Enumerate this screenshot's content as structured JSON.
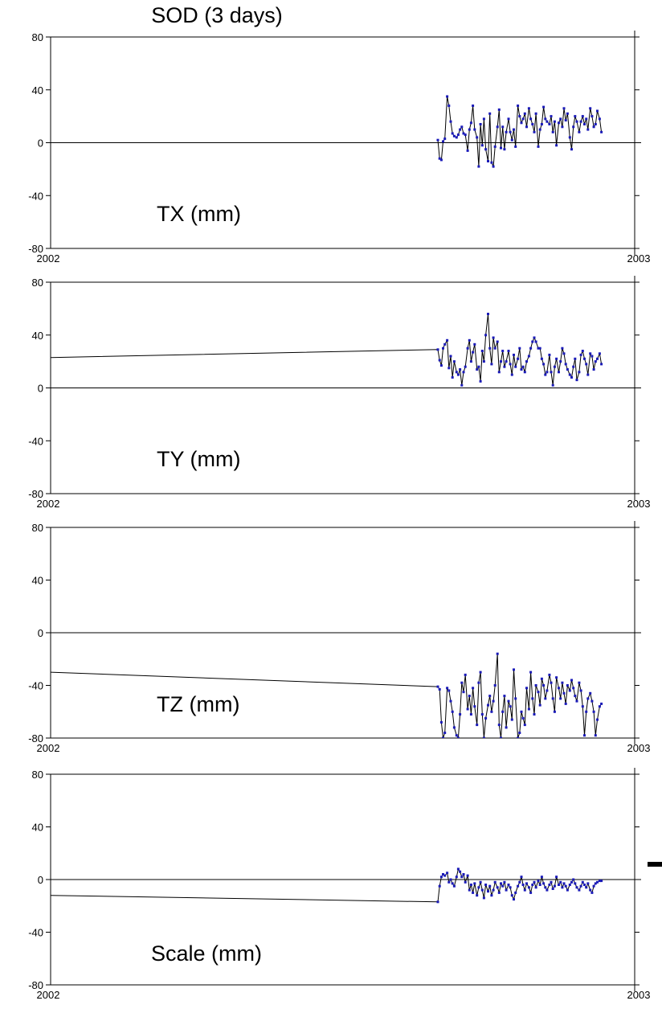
{
  "figure": {
    "title": "SOD (3 days)"
  },
  "colors": {
    "frame": "#000000",
    "series_line": "#000000",
    "series_points": "#1a1ab8",
    "background": "#ffffff"
  },
  "chart_data": [
    {
      "type": "line",
      "label": "TX (mm)",
      "xlim": [
        2002,
        2003
      ],
      "ylim": [
        -80,
        80
      ],
      "yticks": [
        -80,
        -40,
        0,
        40,
        80
      ],
      "xtick_labels": [
        "2002",
        "2003"
      ],
      "zero_line": true,
      "x": [
        2002.663,
        2002.666,
        2002.669,
        2002.672,
        2002.675,
        2002.679,
        2002.682,
        2002.685,
        2002.688,
        2002.691,
        2002.695,
        2002.698,
        2002.701,
        2002.704,
        2002.707,
        2002.71,
        2002.714,
        2002.717,
        2002.72,
        2002.723,
        2002.726,
        2002.73,
        2002.733,
        2002.736,
        2002.739,
        2002.742,
        2002.745,
        2002.749,
        2002.752,
        2002.755,
        2002.758,
        2002.761,
        2002.765,
        2002.768,
        2002.771,
        2002.774,
        2002.777,
        2002.78,
        2002.784,
        2002.787,
        2002.79,
        2002.793,
        2002.796,
        2002.8,
        2002.803,
        2002.806,
        2002.809,
        2002.812,
        2002.815,
        2002.819,
        2002.822,
        2002.825,
        2002.828,
        2002.831,
        2002.835,
        2002.838,
        2002.841,
        2002.844,
        2002.847,
        2002.85,
        2002.854,
        2002.857,
        2002.86,
        2002.863,
        2002.866,
        2002.87,
        2002.873,
        2002.876,
        2002.879,
        2002.882,
        2002.885,
        2002.889,
        2002.892,
        2002.895,
        2002.898,
        2002.901,
        2002.905,
        2002.908,
        2002.911,
        2002.914,
        2002.917,
        2002.92,
        2002.924,
        2002.927,
        2002.93,
        2002.933,
        2002.936,
        2002.94,
        2002.943
      ],
      "y": [
        2,
        -12,
        -13,
        1,
        3,
        35,
        28,
        16,
        7,
        5,
        4,
        6,
        10,
        12,
        7,
        6,
        -6,
        10,
        15,
        28,
        10,
        4,
        -18,
        14,
        -2,
        18,
        -5,
        -14,
        22,
        -15,
        -18,
        -3,
        12,
        25,
        -4,
        12,
        -5,
        8,
        18,
        8,
        2,
        10,
        -3,
        28,
        20,
        15,
        18,
        22,
        12,
        26,
        18,
        14,
        8,
        22,
        -3,
        10,
        14,
        27,
        18,
        16,
        14,
        20,
        8,
        16,
        -2,
        15,
        18,
        12,
        26,
        17,
        22,
        4,
        -5,
        12,
        20,
        16,
        8,
        16,
        20,
        14,
        18,
        10,
        26,
        20,
        12,
        14,
        24,
        18,
        8
      ]
    },
    {
      "type": "line",
      "label": "TY (mm)",
      "xlim": [
        2002,
        2003
      ],
      "ylim": [
        -80,
        80
      ],
      "yticks": [
        -80,
        -40,
        0,
        40,
        80
      ],
      "xtick_labels": [
        "2002",
        "2003"
      ],
      "zero_line": true,
      "x": [
        2002.0,
        2002.663,
        2002.666,
        2002.669,
        2002.672,
        2002.675,
        2002.679,
        2002.682,
        2002.685,
        2002.688,
        2002.691,
        2002.695,
        2002.698,
        2002.701,
        2002.704,
        2002.707,
        2002.71,
        2002.714,
        2002.717,
        2002.72,
        2002.723,
        2002.726,
        2002.73,
        2002.733,
        2002.736,
        2002.739,
        2002.742,
        2002.745,
        2002.749,
        2002.752,
        2002.755,
        2002.758,
        2002.761,
        2002.765,
        2002.768,
        2002.771,
        2002.774,
        2002.777,
        2002.78,
        2002.784,
        2002.787,
        2002.79,
        2002.793,
        2002.796,
        2002.8,
        2002.803,
        2002.806,
        2002.809,
        2002.812,
        2002.815,
        2002.819,
        2002.822,
        2002.825,
        2002.828,
        2002.831,
        2002.835,
        2002.838,
        2002.841,
        2002.844,
        2002.847,
        2002.85,
        2002.854,
        2002.857,
        2002.86,
        2002.863,
        2002.866,
        2002.87,
        2002.873,
        2002.876,
        2002.879,
        2002.882,
        2002.885,
        2002.889,
        2002.892,
        2002.895,
        2002.898,
        2002.901,
        2002.905,
        2002.908,
        2002.911,
        2002.914,
        2002.917,
        2002.92,
        2002.924,
        2002.927,
        2002.93,
        2002.933,
        2002.936,
        2002.94,
        2002.943
      ],
      "y": [
        23,
        29,
        21,
        17,
        30,
        33,
        36,
        15,
        24,
        8,
        20,
        12,
        10,
        14,
        2,
        12,
        16,
        30,
        36,
        20,
        27,
        33,
        14,
        16,
        5,
        28,
        20,
        40,
        56,
        30,
        18,
        38,
        30,
        35,
        12,
        20,
        28,
        16,
        20,
        28,
        18,
        10,
        25,
        16,
        22,
        30,
        14,
        16,
        12,
        20,
        24,
        30,
        35,
        38,
        35,
        30,
        30,
        22,
        18,
        10,
        12,
        25,
        12,
        2,
        16,
        22,
        12,
        20,
        30,
        26,
        18,
        14,
        10,
        8,
        16,
        22,
        6,
        12,
        25,
        28,
        22,
        18,
        10,
        26,
        24,
        14,
        20,
        22,
        26,
        18
      ]
    },
    {
      "type": "line",
      "label": "TZ (mm)",
      "xlim": [
        2002,
        2003
      ],
      "ylim": [
        -80,
        80
      ],
      "yticks": [
        -80,
        -40,
        0,
        40,
        80
      ],
      "xtick_labels": [
        "2002",
        "2003"
      ],
      "zero_line": true,
      "x": [
        2002.0,
        2002.663,
        2002.666,
        2002.669,
        2002.672,
        2002.675,
        2002.679,
        2002.682,
        2002.685,
        2002.688,
        2002.691,
        2002.695,
        2002.698,
        2002.701,
        2002.704,
        2002.707,
        2002.71,
        2002.714,
        2002.717,
        2002.72,
        2002.723,
        2002.726,
        2002.73,
        2002.733,
        2002.736,
        2002.739,
        2002.742,
        2002.745,
        2002.749,
        2002.752,
        2002.755,
        2002.758,
        2002.761,
        2002.765,
        2002.768,
        2002.771,
        2002.774,
        2002.777,
        2002.78,
        2002.784,
        2002.787,
        2002.79,
        2002.793,
        2002.796,
        2002.8,
        2002.803,
        2002.806,
        2002.809,
        2002.812,
        2002.815,
        2002.819,
        2002.822,
        2002.825,
        2002.828,
        2002.831,
        2002.835,
        2002.838,
        2002.841,
        2002.844,
        2002.847,
        2002.85,
        2002.854,
        2002.857,
        2002.86,
        2002.863,
        2002.866,
        2002.87,
        2002.873,
        2002.876,
        2002.879,
        2002.882,
        2002.885,
        2002.889,
        2002.892,
        2002.895,
        2002.898,
        2002.901,
        2002.905,
        2002.908,
        2002.911,
        2002.914,
        2002.917,
        2002.92,
        2002.924,
        2002.927,
        2002.93,
        2002.933,
        2002.936,
        2002.94,
        2002.943
      ],
      "y": [
        -30,
        -41,
        -43,
        -68,
        -80,
        -76,
        -42,
        -44,
        -52,
        -60,
        -72,
        -78,
        -80,
        -62,
        -38,
        -45,
        -32,
        -58,
        -48,
        -62,
        -42,
        -56,
        -70,
        -38,
        -30,
        -62,
        -80,
        -65,
        -55,
        -48,
        -60,
        -52,
        -40,
        -16,
        -70,
        -80,
        -60,
        -48,
        -72,
        -52,
        -56,
        -66,
        -28,
        -50,
        -80,
        -76,
        -60,
        -65,
        -70,
        -42,
        -58,
        -30,
        -50,
        -62,
        -40,
        -45,
        -55,
        -35,
        -40,
        -50,
        -44,
        -32,
        -38,
        -50,
        -60,
        -34,
        -42,
        -50,
        -38,
        -46,
        -54,
        -40,
        -44,
        -36,
        -42,
        -48,
        -52,
        -38,
        -44,
        -56,
        -78,
        -60,
        -50,
        -46,
        -52,
        -60,
        -78,
        -66,
        -56,
        -54
      ]
    },
    {
      "type": "line",
      "label": "Scale (mm)",
      "xlim": [
        2002,
        2003
      ],
      "ylim": [
        -80,
        80
      ],
      "yticks": [
        -80,
        -40,
        0,
        40,
        80
      ],
      "xtick_labels": [
        "2002",
        "2003"
      ],
      "zero_line": true,
      "x": [
        2002.0,
        2002.663,
        2002.666,
        2002.669,
        2002.672,
        2002.675,
        2002.679,
        2002.682,
        2002.685,
        2002.688,
        2002.691,
        2002.695,
        2002.698,
        2002.701,
        2002.704,
        2002.707,
        2002.71,
        2002.714,
        2002.717,
        2002.72,
        2002.723,
        2002.726,
        2002.73,
        2002.733,
        2002.736,
        2002.739,
        2002.742,
        2002.745,
        2002.749,
        2002.752,
        2002.755,
        2002.758,
        2002.761,
        2002.765,
        2002.768,
        2002.771,
        2002.774,
        2002.777,
        2002.78,
        2002.784,
        2002.787,
        2002.79,
        2002.793,
        2002.796,
        2002.8,
        2002.803,
        2002.806,
        2002.809,
        2002.812,
        2002.815,
        2002.819,
        2002.822,
        2002.825,
        2002.828,
        2002.831,
        2002.835,
        2002.838,
        2002.841,
        2002.844,
        2002.847,
        2002.85,
        2002.854,
        2002.857,
        2002.86,
        2002.863,
        2002.866,
        2002.87,
        2002.873,
        2002.876,
        2002.879,
        2002.882,
        2002.885,
        2002.889,
        2002.892,
        2002.895,
        2002.898,
        2002.901,
        2002.905,
        2002.908,
        2002.911,
        2002.914,
        2002.917,
        2002.92,
        2002.924,
        2002.927,
        2002.93,
        2002.933,
        2002.936,
        2002.94,
        2002.943
      ],
      "y": [
        -12,
        -17,
        -5,
        2,
        4,
        3,
        5,
        -2,
        0,
        -3,
        -5,
        2,
        8,
        6,
        2,
        4,
        -2,
        3,
        -8,
        -4,
        -10,
        -3,
        -12,
        -6,
        -2,
        -8,
        -14,
        -4,
        -9,
        -5,
        -12,
        -8,
        -2,
        -6,
        -10,
        -3,
        -5,
        -2,
        -8,
        -4,
        -6,
        -12,
        -15,
        -10,
        -5,
        -2,
        2,
        -4,
        -8,
        -3,
        -6,
        -10,
        -4,
        -2,
        -6,
        -1,
        -4,
        2,
        -3,
        -6,
        -8,
        -4,
        -2,
        -7,
        -5,
        2,
        -4,
        -2,
        -6,
        -3,
        -5,
        -8,
        -4,
        -2,
        0,
        -3,
        -6,
        -8,
        -5,
        -2,
        -4,
        -6,
        -3,
        -8,
        -10,
        -5,
        -3,
        -2,
        -1,
        -1
      ]
    }
  ]
}
